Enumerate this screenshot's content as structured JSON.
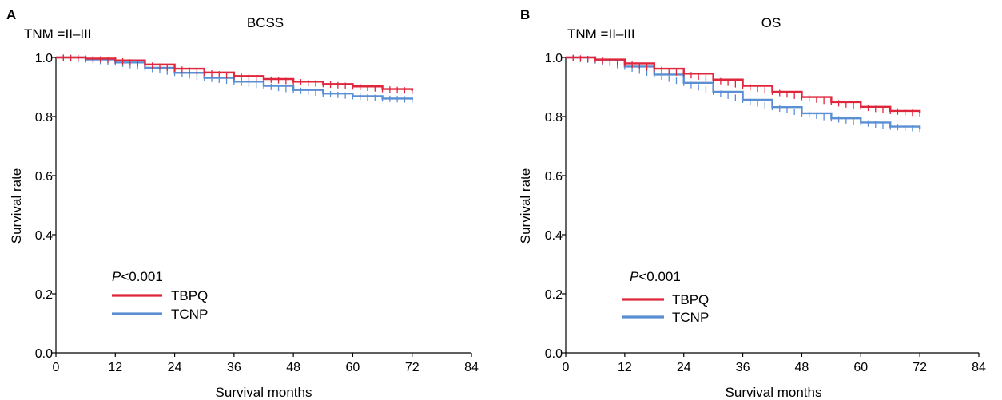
{
  "chart_data": [
    {
      "type": "line",
      "panel": "A",
      "title": "BCSS",
      "subtitle": "TNM =II–III",
      "xlabel": "Survival months",
      "ylabel": "Survival rate",
      "xlim": [
        0,
        84
      ],
      "ylim": [
        0,
        1
      ],
      "xticks": [
        "0",
        "12",
        "24",
        "36",
        "48",
        "60",
        "72",
        "84"
      ],
      "yticks": [
        "0.0",
        "0.2",
        "0.4",
        "0.6",
        "0.8",
        "1.0"
      ],
      "annotation": {
        "p_symbol": "P",
        "p_rest": "<0.001"
      },
      "legend_position": "lower-left",
      "series": [
        {
          "name": "TBPQ",
          "color": "#e0263b",
          "x": [
            0,
            6,
            12,
            18,
            24,
            30,
            36,
            42,
            48,
            54,
            60,
            66,
            72
          ],
          "y": [
            1.0,
            0.996,
            0.99,
            0.976,
            0.962,
            0.949,
            0.937,
            0.927,
            0.918,
            0.91,
            0.902,
            0.893,
            0.887
          ]
        },
        {
          "name": "TCNP",
          "color": "#5b8fd4",
          "x": [
            0,
            6,
            12,
            18,
            24,
            30,
            36,
            42,
            48,
            54,
            60,
            66,
            72
          ],
          "y": [
            1.0,
            0.993,
            0.983,
            0.965,
            0.948,
            0.931,
            0.918,
            0.904,
            0.89,
            0.878,
            0.869,
            0.861,
            0.857
          ]
        }
      ]
    },
    {
      "type": "line",
      "panel": "B",
      "title": "OS",
      "subtitle": "TNM =II–III",
      "xlabel": "Survival months",
      "ylabel": "Survival rate",
      "xlim": [
        0,
        84
      ],
      "ylim": [
        0,
        1
      ],
      "xticks": [
        "0",
        "12",
        "24",
        "36",
        "48",
        "60",
        "72",
        "84"
      ],
      "yticks": [
        "0.0",
        "0.2",
        "0.4",
        "0.6",
        "0.8",
        "1.0"
      ],
      "annotation": {
        "p_symbol": "P",
        "p_rest": "<0.001"
      },
      "legend_position": "lower-left",
      "series": [
        {
          "name": "TBPQ",
          "color": "#e0263b",
          "x": [
            0,
            6,
            12,
            18,
            24,
            30,
            36,
            42,
            48,
            54,
            60,
            66,
            72
          ],
          "y": [
            1.0,
            0.993,
            0.98,
            0.962,
            0.945,
            0.925,
            0.904,
            0.884,
            0.866,
            0.849,
            0.833,
            0.819,
            0.811
          ]
        },
        {
          "name": "TCNP",
          "color": "#5b8fd4",
          "x": [
            0,
            6,
            12,
            18,
            24,
            30,
            36,
            42,
            48,
            54,
            60,
            66,
            72
          ],
          "y": [
            1.0,
            0.99,
            0.969,
            0.942,
            0.914,
            0.884,
            0.857,
            0.832,
            0.811,
            0.794,
            0.78,
            0.766,
            0.759
          ]
        }
      ]
    }
  ]
}
